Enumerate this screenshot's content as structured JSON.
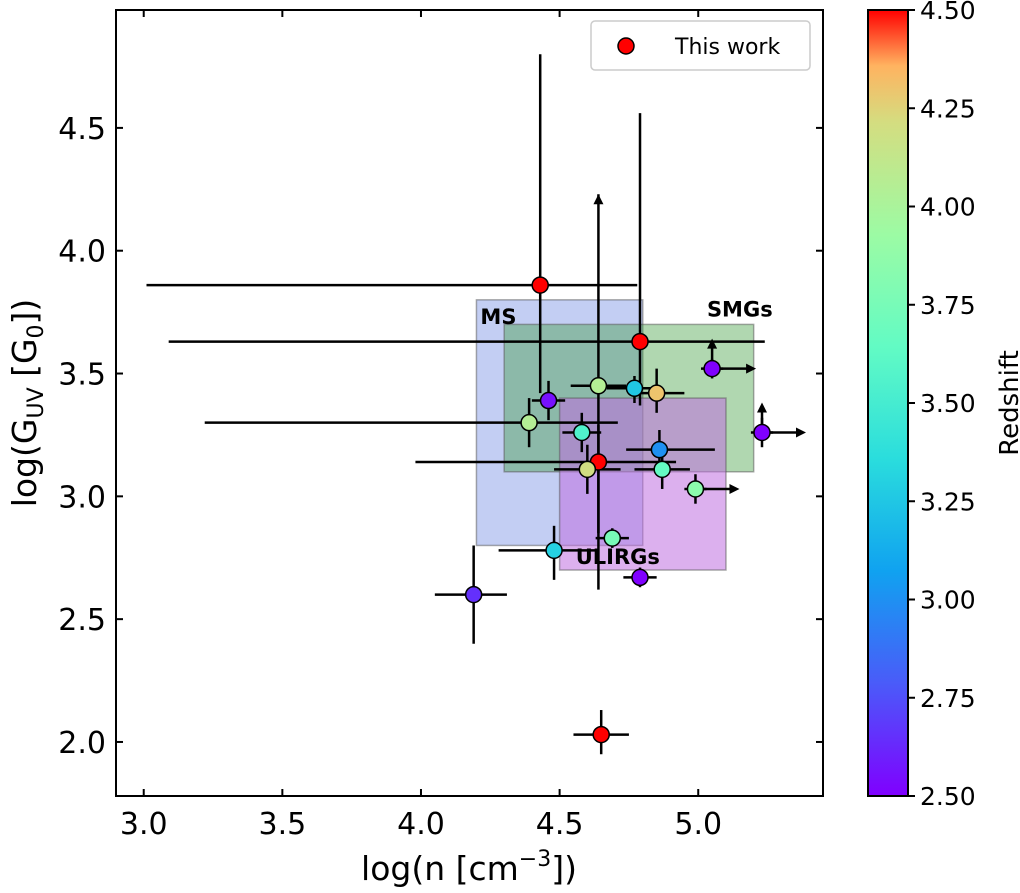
{
  "chart_data": {
    "type": "scatter",
    "title": "",
    "xlabel_parts": {
      "pre": "log(n [cm",
      "sup": "−3",
      "post": "])"
    },
    "ylabel_parts": {
      "pre": "log(G",
      "sub1": "UV",
      "mid": " [G",
      "sub2": "0",
      "post": "])"
    },
    "xlim": [
      2.9,
      5.45
    ],
    "ylim": [
      1.78,
      4.98
    ],
    "xticks": [
      3.0,
      3.5,
      4.0,
      4.5,
      5.0
    ],
    "xtick_labels": [
      "3.0",
      "3.5",
      "4.0",
      "4.5",
      "5.0"
    ],
    "yticks": [
      2.0,
      2.5,
      3.0,
      3.5,
      4.0,
      4.5
    ],
    "ytick_labels": [
      "2.0",
      "2.5",
      "3.0",
      "3.5",
      "4.0",
      "4.5"
    ],
    "grid": false,
    "legend": {
      "location": "upper right",
      "entries": [
        {
          "label": "This work",
          "color": "#ff0000"
        }
      ]
    },
    "colorbar": {
      "label": "Redshift",
      "range": [
        2.5,
        4.5
      ],
      "colormap": "rainbow",
      "ticks": [
        2.5,
        2.75,
        3.0,
        3.25,
        3.5,
        3.75,
        4.0,
        4.25,
        4.5
      ],
      "tick_labels": [
        "2.50",
        "2.75",
        "3.00",
        "3.25",
        "3.50",
        "3.75",
        "4.00",
        "4.25",
        "4.50"
      ]
    },
    "regions": [
      {
        "label": "MS",
        "x": [
          4.2,
          4.8
        ],
        "y": [
          2.8,
          3.8
        ],
        "color": "#6a85e0",
        "alpha": 0.4
      },
      {
        "label": "SMGs",
        "x": [
          4.3,
          5.2
        ],
        "y": [
          3.1,
          3.7
        ],
        "color": "#3a9a3a",
        "alpha": 0.4
      },
      {
        "label": "ULIRGs",
        "x": [
          4.5,
          5.1
        ],
        "y": [
          2.7,
          3.4
        ],
        "color": "#c070e0",
        "alpha": 0.55
      }
    ],
    "points": [
      {
        "x": 4.43,
        "y": 3.86,
        "z": 4.5,
        "xerr": [
          1.42,
          0.35
        ],
        "yerr": [
          0.44,
          0.94
        ]
      },
      {
        "x": 4.79,
        "y": 3.63,
        "z": 4.5,
        "xerr": [
          1.7,
          0.45
        ],
        "yerr": [
          0.26,
          0.93
        ]
      },
      {
        "x": 4.64,
        "y": 3.14,
        "z": 4.5,
        "xerr": [
          0.66,
          0.28
        ],
        "yerr": [
          0.29,
          0.15
        ]
      },
      {
        "x": 4.65,
        "y": 2.03,
        "z": 4.5,
        "xerr": [
          0.1,
          0.1
        ],
        "yerr": [
          0.08,
          0.1
        ]
      },
      {
        "x": 4.85,
        "y": 3.42,
        "z": 4.3,
        "xerr": [
          0.1,
          0.1
        ],
        "yerr": [
          0.08,
          0.1
        ]
      },
      {
        "x": 4.6,
        "y": 3.11,
        "z": 4.2,
        "xerr": [
          0.12,
          0.12
        ],
        "yerr": [
          0.1,
          0.1
        ]
      },
      {
        "x": 4.64,
        "y": 3.45,
        "z": 4.05,
        "xerr": [
          0.1,
          0.1
        ],
        "yerr": [
          0.83,
          0.78
        ],
        "lower_y": true
      },
      {
        "x": 4.39,
        "y": 3.3,
        "z": 4.05,
        "xerr": [
          1.17,
          0.32
        ],
        "yerr": [
          0.1,
          0.1
        ]
      },
      {
        "x": 4.99,
        "y": 3.03,
        "z": 3.85,
        "xerr": [
          0.04,
          0.04
        ],
        "yerr": [
          0.06,
          0.06
        ],
        "lower_x": true
      },
      {
        "x": 4.69,
        "y": 2.83,
        "z": 3.75,
        "xerr": [
          0.06,
          0.06
        ],
        "yerr": [
          0.04,
          0.04
        ]
      },
      {
        "x": 4.87,
        "y": 3.11,
        "z": 3.65,
        "xerr": [
          0.1,
          0.1
        ],
        "yerr": [
          0.08,
          0.08
        ]
      },
      {
        "x": 4.58,
        "y": 3.26,
        "z": 3.55,
        "xerr": [
          0.07,
          0.07
        ],
        "yerr": [
          0.08,
          0.08
        ]
      },
      {
        "x": 4.48,
        "y": 2.78,
        "z": 3.3,
        "xerr": [
          0.2,
          0.16
        ],
        "yerr": [
          0.12,
          0.1
        ]
      },
      {
        "x": 4.77,
        "y": 3.44,
        "z": 3.25,
        "xerr": [
          0.1,
          0.1
        ],
        "yerr": [
          0.06,
          0.05
        ]
      },
      {
        "x": 4.86,
        "y": 3.19,
        "z": 3.0,
        "xerr": [
          0.12,
          0.2
        ],
        "yerr": [
          0.08,
          0.08
        ]
      },
      {
        "x": 4.19,
        "y": 2.6,
        "z": 2.65,
        "xerr": [
          0.14,
          0.12
        ],
        "yerr": [
          0.2,
          0.2
        ]
      },
      {
        "x": 4.46,
        "y": 3.39,
        "z": 2.55,
        "xerr": [
          0.06,
          0.06
        ],
        "yerr": [
          0.08,
          0.08
        ]
      },
      {
        "x": 5.05,
        "y": 3.52,
        "z": 2.5,
        "xerr": [
          0.04,
          0.04
        ],
        "yerr": [
          0.04,
          0.04
        ],
        "lower_x": true,
        "lower_y": true
      },
      {
        "x": 5.23,
        "y": 3.26,
        "z": 2.5,
        "xerr": [
          0.04,
          0.04
        ],
        "yerr": [
          0.06,
          0.06
        ],
        "lower_x": true,
        "lower_y": true
      },
      {
        "x": 4.79,
        "y": 2.67,
        "z": 2.5,
        "xerr": [
          0.06,
          0.06
        ],
        "yerr": [
          0.04,
          0.04
        ]
      }
    ]
  }
}
